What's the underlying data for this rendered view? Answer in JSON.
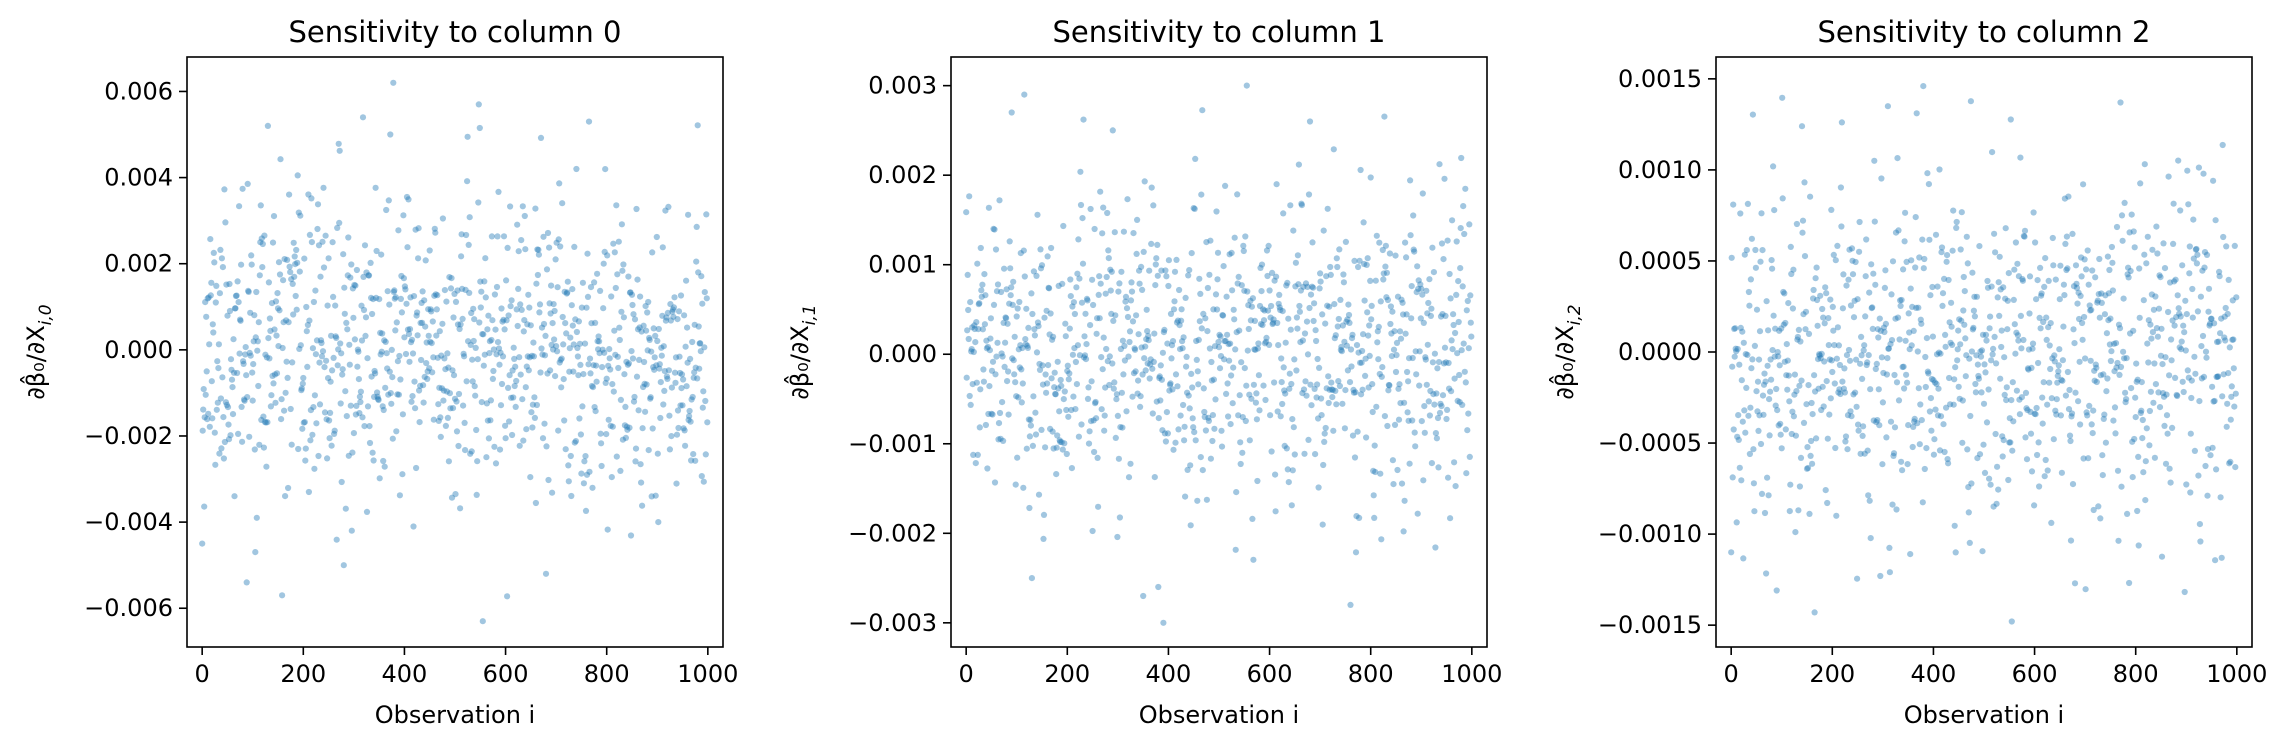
{
  "chart_data": [
    {
      "type": "scatter",
      "title": "Sensitivity to column 0",
      "xlabel": "Observation i",
      "ylabel": "∂β̂₀/∂X",
      "ylabel_subscript": "i,0",
      "xlim": [
        -30,
        1030
      ],
      "ylim": [
        -0.0069,
        0.0068
      ],
      "xticks": [
        0,
        200,
        400,
        600,
        800,
        1000
      ],
      "xtick_labels": [
        "0",
        "200",
        "400",
        "600",
        "800",
        "1000"
      ],
      "yticks": [
        -0.006,
        -0.004,
        -0.002,
        0.0,
        0.002,
        0.004,
        0.006
      ],
      "ytick_labels": [
        "−0.006",
        "−0.004",
        "−0.002",
        "0.000",
        "0.002",
        "0.004",
        "0.006"
      ],
      "n_points": 1000,
      "spread": 0.00165,
      "max_abs": 0.0063,
      "seed": 11,
      "extremes": [
        [
          378,
          0.0062
        ],
        [
          318,
          0.0054
        ],
        [
          372,
          0.005
        ],
        [
          765,
          0.0053
        ],
        [
          130,
          0.0052
        ],
        [
          555,
          -0.0063
        ],
        [
          158,
          -0.0057
        ],
        [
          88,
          -0.0054
        ],
        [
          680,
          -0.0052
        ],
        [
          280,
          -0.005
        ],
        [
          0,
          -0.0045
        ]
      ]
    },
    {
      "type": "scatter",
      "title": "Sensitivity to column 1",
      "xlabel": "Observation i",
      "ylabel": "∂β̂₀/∂X",
      "ylabel_subscript": "i,1",
      "xlim": [
        -30,
        1030
      ],
      "ylim": [
        -0.00327,
        0.00332
      ],
      "xticks": [
        0,
        200,
        400,
        600,
        800,
        1000
      ],
      "xtick_labels": [
        "0",
        "200",
        "400",
        "600",
        "800",
        "1000"
      ],
      "yticks": [
        -0.003,
        -0.002,
        -0.001,
        0.0,
        0.001,
        0.002,
        0.003
      ],
      "ytick_labels": [
        "−0.003",
        "−0.002",
        "−0.001",
        "0.000",
        "0.001",
        "0.002",
        "0.003"
      ],
      "n_points": 1000,
      "spread": 0.0008,
      "max_abs": 0.003,
      "seed": 23,
      "extremes": [
        [
          555,
          0.003
        ],
        [
          115,
          0.0029
        ],
        [
          90,
          0.0027
        ],
        [
          680,
          0.0026
        ],
        [
          290,
          0.0025
        ],
        [
          390,
          -0.003
        ],
        [
          380,
          -0.0026
        ],
        [
          760,
          -0.0028
        ],
        [
          130,
          -0.0025
        ],
        [
          350,
          -0.0027
        ]
      ]
    },
    {
      "type": "scatter",
      "title": "Sensitivity to column 2",
      "xlabel": "Observation i",
      "ylabel": "∂β̂₀/∂X",
      "ylabel_subscript": "i,2",
      "xlim": [
        -30,
        1030
      ],
      "ylim": [
        -0.00162,
        0.00162
      ],
      "xticks": [
        0,
        200,
        400,
        600,
        800,
        1000
      ],
      "xtick_labels": [
        "0",
        "200",
        "400",
        "600",
        "800",
        "1000"
      ],
      "yticks": [
        -0.0015,
        -0.001,
        -0.0005,
        0.0,
        0.0005,
        0.001,
        0.0015
      ],
      "ytick_labels": [
        "−0.0015",
        "−0.0010",
        "−0.0005",
        "0.0000",
        "0.0005",
        "0.0010",
        "0.0015"
      ],
      "n_points": 1000,
      "spread": 0.00045,
      "max_abs": 0.00148,
      "seed": 37,
      "extremes": [
        [
          380,
          0.00146
        ],
        [
          770,
          0.00137
        ],
        [
          310,
          0.00135
        ],
        [
          140,
          0.00124
        ],
        [
          555,
          -0.00148
        ],
        [
          165,
          -0.00143
        ],
        [
          90,
          -0.00131
        ],
        [
          680,
          -0.00127
        ],
        [
          295,
          -0.00123
        ],
        [
          970,
          -0.00113
        ],
        [
          0,
          -0.0011
        ]
      ]
    }
  ],
  "colors": {
    "points": "#1f77b4",
    "frame": "#000000",
    "background": "#ffffff"
  }
}
